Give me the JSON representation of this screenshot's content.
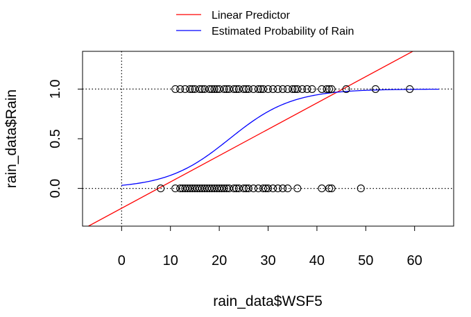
{
  "chart_data": {
    "type": "scatter",
    "xlabel": "rain_data$WSF5",
    "ylabel": "rain_data$Rain",
    "xlim": [
      -8,
      68
    ],
    "ylim": [
      -0.38,
      1.38
    ],
    "x_ticks": [
      0,
      10,
      20,
      30,
      40,
      50,
      60
    ],
    "y_ticks": [
      0.0,
      0.5,
      1.0
    ],
    "x_tick_labels": [
      "0",
      "10",
      "20",
      "30",
      "40",
      "50",
      "60"
    ],
    "y_tick_labels": [
      "0.0",
      "0.5",
      "1.0"
    ],
    "legend": {
      "placement": "top-center, outside plot",
      "entries": [
        {
          "label": "Linear Predictor",
          "color": "#ff0000"
        },
        {
          "label": "Estimated Probability of Rain",
          "color": "#0000ff"
        }
      ]
    },
    "reference_lines": {
      "style": "dotted",
      "vertical_x": 0,
      "horizontal_y": [
        0,
        1
      ]
    },
    "series": [
      {
        "name": "Linear Predictor",
        "kind": "line",
        "color": "#ff0000",
        "intercept": -0.2,
        "slope": 0.0265
      },
      {
        "name": "Estimated Probability of Rain",
        "kind": "logistic",
        "color": "#0000ff",
        "intercept": -3.45,
        "slope": 0.156,
        "x_range": [
          0,
          65
        ]
      },
      {
        "name": "observations",
        "kind": "points",
        "marker": "open-circle",
        "color": "#000000",
        "y1_x": [
          11,
          12,
          13,
          14,
          14.5,
          15,
          16,
          16.5,
          17,
          18,
          18.5,
          19,
          19.5,
          20,
          21,
          21.5,
          22,
          23,
          23.5,
          24,
          25,
          25.5,
          26,
          27,
          28,
          28.5,
          29,
          30,
          31,
          32,
          33,
          34,
          35,
          35.5,
          36,
          37,
          38,
          39,
          41,
          42,
          42.5,
          43,
          46,
          52,
          59
        ],
        "y0_x": [
          8,
          11,
          12,
          12.5,
          13,
          13.5,
          14,
          14.5,
          15,
          15.5,
          16,
          16.5,
          17,
          17.5,
          18,
          18.5,
          19,
          19.5,
          20,
          20.5,
          21,
          21.5,
          22,
          23,
          23.5,
          24,
          25,
          25.5,
          26,
          27,
          28,
          29,
          29.5,
          30,
          31,
          32,
          33,
          34,
          36,
          41,
          42.5,
          43,
          49
        ]
      }
    ]
  }
}
